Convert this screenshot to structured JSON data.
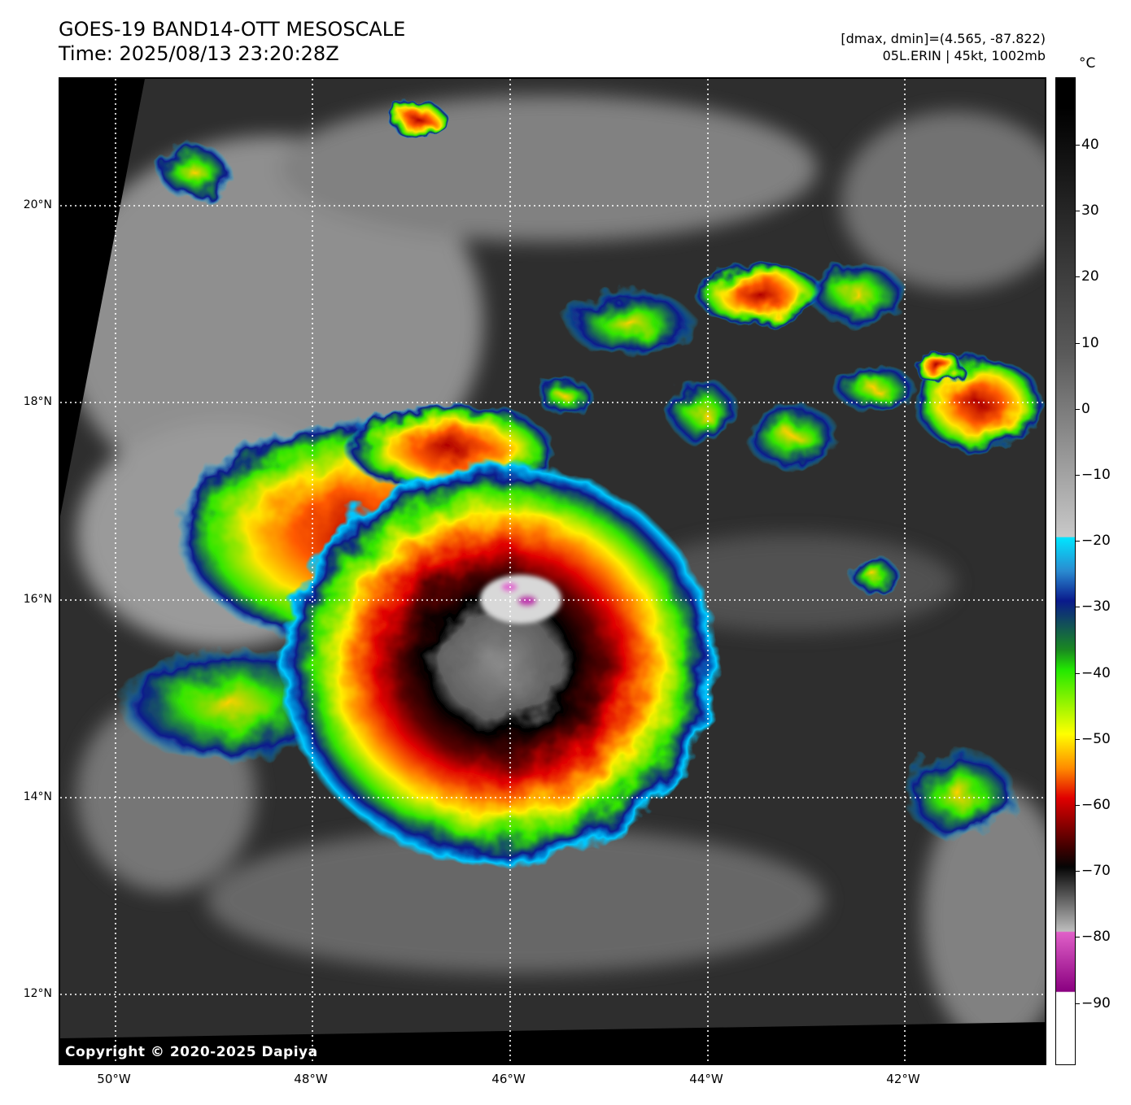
{
  "header": {
    "title_line1": "GOES-19 BAND14-OTT MESOSCALE",
    "title_line2": "Time: 2025/08/13 23:20:28Z",
    "info_line1": "[dmax, dmin]=(4.565, -87.822)",
    "info_line2": "05L.ERIN | 45kt, 1002mb"
  },
  "map": {
    "copyright": "Copyright © 2020-2025 Dapiya",
    "lat_labels": [
      "20°N",
      "18°N",
      "16°N",
      "14°N",
      "12°N"
    ],
    "lon_labels": [
      "50°W",
      "48°W",
      "46°W",
      "44°W",
      "42°W"
    ],
    "storm": "05L.ERIN"
  },
  "colorbar": {
    "unit": "°C",
    "ticks": [
      "40",
      "30",
      "20",
      "10",
      "0",
      "−10",
      "−20",
      "−30",
      "−40",
      "−50",
      "−60",
      "−70",
      "−80",
      "−90"
    ],
    "colors": {
      "warm": "#000000",
      "cold_gray": "#c8c8c8",
      "cyan": "#00e5ff",
      "blue": "#0a1a8c",
      "green": "#22e800",
      "yellow": "#ffff00",
      "orange": "#ff8a00",
      "red": "#e00000",
      "darkred": "#400000",
      "pink": "#e060c8",
      "purple": "#8a0080",
      "coldest": "#ffffff"
    }
  }
}
